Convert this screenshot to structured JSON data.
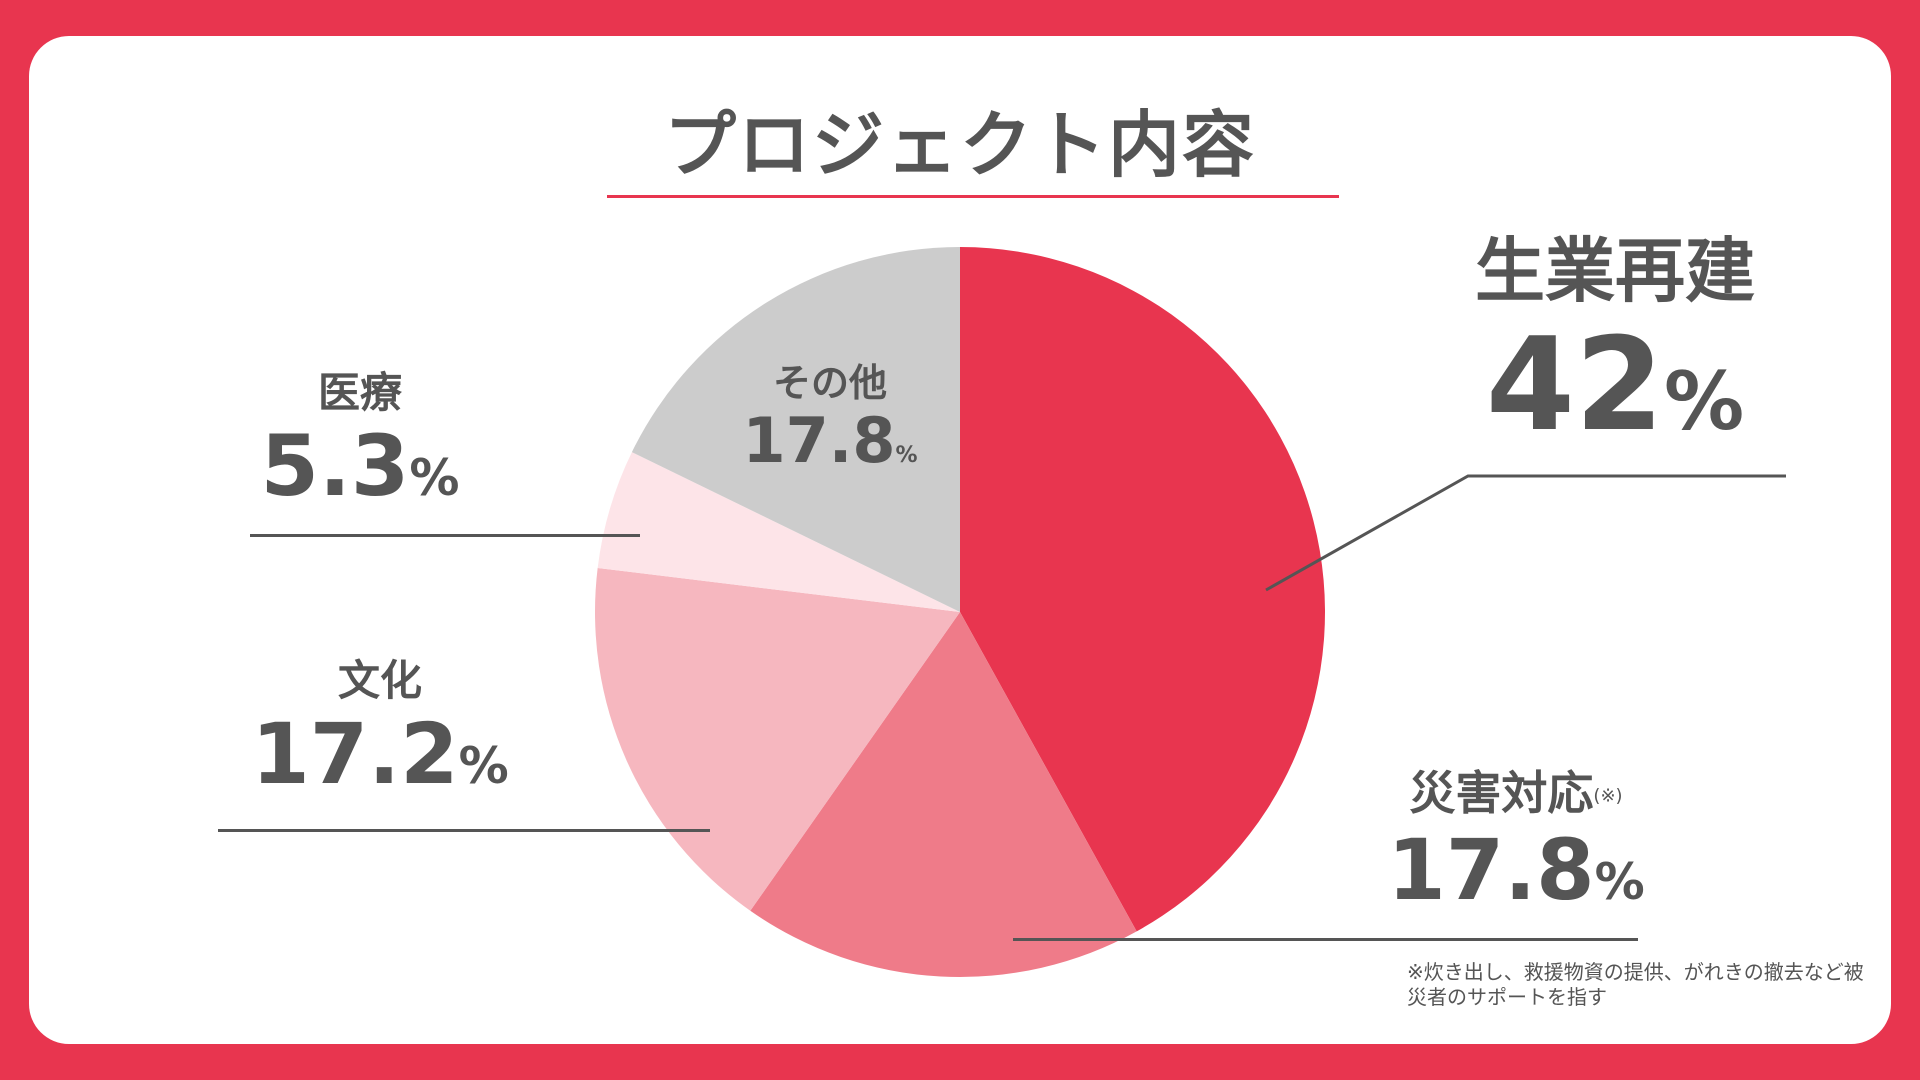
{
  "title": "プロジェクト内容",
  "footnote": "※炊き出し、救援物資の提供、がれきの撤去など被災者のサポートを指す",
  "colors": {
    "background": "#e8354f",
    "text": "#555555",
    "accent": "#e8354f"
  },
  "chart_data": {
    "type": "pie",
    "title": "プロジェクト内容",
    "start_angle_deg": 0,
    "direction": "clockwise",
    "unit": "%",
    "slices": [
      {
        "label": "生業再建",
        "value": 42,
        "display": "42",
        "color": "#e8354f"
      },
      {
        "label": "災害対応",
        "label_note": "(※)",
        "value": 17.8,
        "display": "17.8",
        "color": "#ef7b89"
      },
      {
        "label": "文化",
        "value": 17.2,
        "display": "17.2",
        "color": "#f6b7bf"
      },
      {
        "label": "医療",
        "value": 5.3,
        "display": "5.3",
        "color": "#fde4e8"
      },
      {
        "label": "その他",
        "value": 17.8,
        "display": "17.8",
        "color": "#cccccc"
      }
    ]
  }
}
